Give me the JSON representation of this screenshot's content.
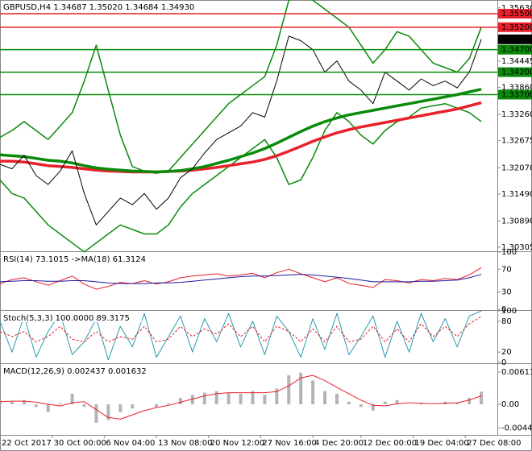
{
  "chart_data": [
    {
      "type": "line",
      "title": "GBPUSD,H4  1.34687 1.35020 1.34684 1.34930",
      "x": [
        0,
        3,
        6,
        9,
        12,
        15,
        18,
        21,
        24,
        27,
        30,
        33,
        36,
        39,
        42,
        45,
        48,
        51,
        54,
        57,
        60,
        63,
        66,
        69,
        72,
        75,
        78,
        81,
        84,
        87,
        90,
        93,
        96,
        99,
        102,
        105,
        108,
        111,
        114,
        117,
        120
      ],
      "xlim": [
        0,
        124
      ],
      "xticks": [
        {
          "value": 0,
          "label": "22 Oct 2017"
        },
        {
          "value": 13,
          "label": "30 Oct 00:00"
        },
        {
          "value": 26,
          "label": "6 Nov 04:00"
        },
        {
          "value": 39,
          "label": "13 Nov 08:00"
        },
        {
          "value": 52,
          "label": "20 Nov 12:00"
        },
        {
          "value": 65,
          "label": "27 Nov 16:00"
        },
        {
          "value": 78,
          "label": "4 Dec 20:00"
        },
        {
          "value": 90,
          "label": "12 Dec 00:00"
        },
        {
          "value": 103,
          "label": "19 Dec 04:00"
        },
        {
          "value": 116,
          "label": "27 Dec 08:00"
        }
      ],
      "ylim": [
        1.30215,
        1.35805
      ],
      "yticks": [
        {
          "value": 1.3563,
          "label": "1.35630"
        },
        {
          "value": 1.34445,
          "label": "1.34445"
        },
        {
          "value": 1.3386,
          "label": "1.33860"
        },
        {
          "value": 1.3326,
          "label": "1.33260"
        },
        {
          "value": 1.32675,
          "label": "1.32675"
        },
        {
          "value": 1.3207,
          "label": "1.32070"
        },
        {
          "value": 1.3149,
          "label": "1.31490"
        },
        {
          "value": 1.3089,
          "label": "1.30890"
        },
        {
          "value": 1.30305,
          "label": "1.30305"
        }
      ],
      "levels": [
        {
          "value": 1.355,
          "label": "1.35500",
          "color": "#e8212a"
        },
        {
          "value": 1.352,
          "label": "1.35200",
          "color": "#e8212a"
        },
        {
          "value": 1.347,
          "label": "1.34700",
          "color": "#0a8a0a"
        },
        {
          "value": 1.342,
          "label": "1.34200",
          "color": "#0a8a0a"
        },
        {
          "value": 1.337,
          "label": "1.33700",
          "color": "#0a8a0a"
        }
      ],
      "current": {
        "value": 1.3493,
        "label": "1.34930",
        "color": "#000000"
      },
      "series": [
        {
          "color": "#0a8a0a",
          "width": 1.5,
          "values": [
            1.3275,
            1.329,
            1.331,
            1.329,
            1.327,
            1.33,
            1.333,
            1.34,
            1.348,
            1.338,
            1.328,
            1.321,
            1.32,
            1.3195,
            1.32,
            1.323,
            1.326,
            1.329,
            1.332,
            1.335,
            1.337,
            1.339,
            1.341,
            1.348,
            1.358,
            1.359,
            1.358,
            1.356,
            1.354,
            1.352,
            1.348,
            1.344,
            1.347,
            1.351,
            1.35,
            1.347,
            1.344,
            1.343,
            1.342,
            1.345,
            1.352
          ]
        },
        {
          "color": "#0a8a0a",
          "width": 1.5,
          "values": [
            1.318,
            1.315,
            1.314,
            1.311,
            1.308,
            1.306,
            1.304,
            1.302,
            1.304,
            1.306,
            1.308,
            1.307,
            1.306,
            1.306,
            1.308,
            1.312,
            1.315,
            1.317,
            1.319,
            1.321,
            1.323,
            1.325,
            1.327,
            1.323,
            1.317,
            1.318,
            1.323,
            1.329,
            1.333,
            1.331,
            1.328,
            1.326,
            1.329,
            1.331,
            1.332,
            1.334,
            1.3345,
            1.335,
            1.334,
            1.333,
            1.331
          ]
        },
        {
          "color": "#e8212a",
          "width": 3.5,
          "values": [
            1.3222,
            1.3222,
            1.322,
            1.3216,
            1.3212,
            1.321,
            1.3208,
            1.3205,
            1.3202,
            1.32,
            1.3199,
            1.3198,
            1.3198,
            1.3198,
            1.3199,
            1.32,
            1.3202,
            1.3205,
            1.3208,
            1.3212,
            1.3216,
            1.322,
            1.3226,
            1.3234,
            1.3244,
            1.3255,
            1.3266,
            1.3276,
            1.3285,
            1.3292,
            1.3298,
            1.3303,
            1.3308,
            1.3313,
            1.3318,
            1.3323,
            1.3328,
            1.3333,
            1.3338,
            1.3345,
            1.3352
          ]
        },
        {
          "color": "#0a8a0a",
          "width": 3.5,
          "values": [
            1.3236,
            1.3234,
            1.3232,
            1.3228,
            1.3224,
            1.3222,
            1.3218,
            1.3212,
            1.3207,
            1.3204,
            1.3202,
            1.32,
            1.3199,
            1.3198,
            1.3199,
            1.3201,
            1.3205,
            1.321,
            1.3217,
            1.3224,
            1.3232,
            1.324,
            1.325,
            1.3262,
            1.3275,
            1.3288,
            1.33,
            1.331,
            1.3318,
            1.3325,
            1.333,
            1.3335,
            1.334,
            1.3345,
            1.335,
            1.3355,
            1.336,
            1.3365,
            1.337,
            1.3376,
            1.3382
          ]
        },
        {
          "color": "#000000",
          "width": 1,
          "values": [
            1.3215,
            1.3205,
            1.3235,
            1.319,
            1.317,
            1.32,
            1.3245,
            1.315,
            1.308,
            1.311,
            1.314,
            1.3125,
            1.315,
            1.3115,
            1.314,
            1.3185,
            1.3205,
            1.324,
            1.327,
            1.3285,
            1.33,
            1.333,
            1.332,
            1.34,
            1.35,
            1.349,
            1.347,
            1.342,
            1.3445,
            1.34,
            1.338,
            1.335,
            1.342,
            1.34,
            1.338,
            1.3405,
            1.339,
            1.34,
            1.3385,
            1.342,
            1.3493
          ]
        }
      ]
    },
    {
      "type": "line",
      "title": "RSI(14) 73.1015  ->MA(18) 61.3124",
      "ylim": [
        0,
        100
      ],
      "yticks": [
        100,
        70,
        30,
        0
      ],
      "series": [
        {
          "color": "#e8212a",
          "width": 1,
          "values": [
            45,
            52,
            55,
            48,
            42,
            50,
            58,
            44,
            35,
            40,
            47,
            45,
            50,
            44,
            48,
            55,
            58,
            60,
            62,
            58,
            60,
            63,
            55,
            64,
            70,
            62,
            55,
            48,
            55,
            45,
            42,
            38,
            52,
            50,
            46,
            52,
            50,
            54,
            52,
            60,
            73
          ]
        },
        {
          "color": "#1a1aa0",
          "width": 1,
          "values": [
            48,
            49,
            50,
            50,
            49,
            49,
            50,
            50,
            48,
            46,
            45,
            45,
            45,
            46,
            46,
            47,
            49,
            51,
            53,
            55,
            57,
            58,
            58,
            59,
            60,
            61,
            60,
            58,
            56,
            54,
            51,
            48,
            48,
            48,
            48,
            49,
            49,
            50,
            51,
            55,
            61
          ]
        }
      ]
    },
    {
      "type": "line",
      "title": "Stoch(5,3,3) 100.0000 89.3175",
      "ylim": [
        0,
        100
      ],
      "yticks": [
        100,
        80,
        20,
        0
      ],
      "series": [
        {
          "color": "#2a9ab0",
          "width": 1,
          "values": [
            80,
            20,
            90,
            10,
            60,
            95,
            15,
            40,
            85,
            5,
            70,
            30,
            95,
            10,
            50,
            90,
            20,
            85,
            40,
            95,
            30,
            80,
            15,
            90,
            60,
            10,
            85,
            25,
            95,
            15,
            50,
            90,
            10,
            80,
            20,
            95,
            40,
            85,
            30,
            90,
            100
          ]
        },
        {
          "color": "#e8212a",
          "width": 1,
          "dash": true,
          "values": [
            60,
            50,
            60,
            40,
            50,
            70,
            45,
            40,
            60,
            40,
            50,
            45,
            70,
            40,
            45,
            70,
            50,
            65,
            55,
            75,
            50,
            70,
            40,
            70,
            60,
            40,
            65,
            40,
            70,
            40,
            45,
            70,
            40,
            65,
            40,
            75,
            50,
            70,
            50,
            75,
            89
          ]
        }
      ]
    },
    {
      "type": "bar",
      "title": "MACD(12,26,9) 0.002437 0.001632",
      "ylim": [
        -0.0058,
        0.00764
      ],
      "yticks": [
        0.00611,
        {
          "value": 0,
          "label": "0.00"
        },
        -0.004499
      ],
      "color": "#b4b4b4",
      "values": [
        0.001,
        0.0005,
        0.0008,
        -0.0005,
        -0.0015,
        0.0002,
        0.002,
        -0.0005,
        -0.0035,
        -0.003,
        -0.0015,
        -0.0008,
        0,
        -0.0005,
        0.0002,
        0.0012,
        0.0018,
        0.0022,
        0.0025,
        0.0022,
        0.002,
        0.0025,
        0.0018,
        0.003,
        0.0055,
        0.006,
        0.0045,
        0.0025,
        0.002,
        0.0005,
        -0.0005,
        -0.0012,
        0.0005,
        0.0008,
        0,
        0.0003,
        0,
        0.0005,
        0.0003,
        0.0012,
        0.0024
      ],
      "series": [
        {
          "color": "#e8212a",
          "width": 1,
          "values": [
            0.0005,
            0.0006,
            0.0006,
            0.0004,
            0,
            -0.0003,
            0.0003,
            0.0005,
            -0.001,
            -0.0025,
            -0.0028,
            -0.002,
            -0.0012,
            -0.0006,
            -0.0002,
            0.0004,
            0.001,
            0.0016,
            0.002,
            0.0022,
            0.0022,
            0.0022,
            0.0022,
            0.0024,
            0.0035,
            0.005,
            0.0055,
            0.0045,
            0.0032,
            0.002,
            0.0008,
            -0.0002,
            -0.0003,
            0.0001,
            0.0003,
            0.0002,
            0.0001,
            0.0002,
            0.0003,
            0.0008,
            0.0016
          ]
        }
      ]
    }
  ]
}
